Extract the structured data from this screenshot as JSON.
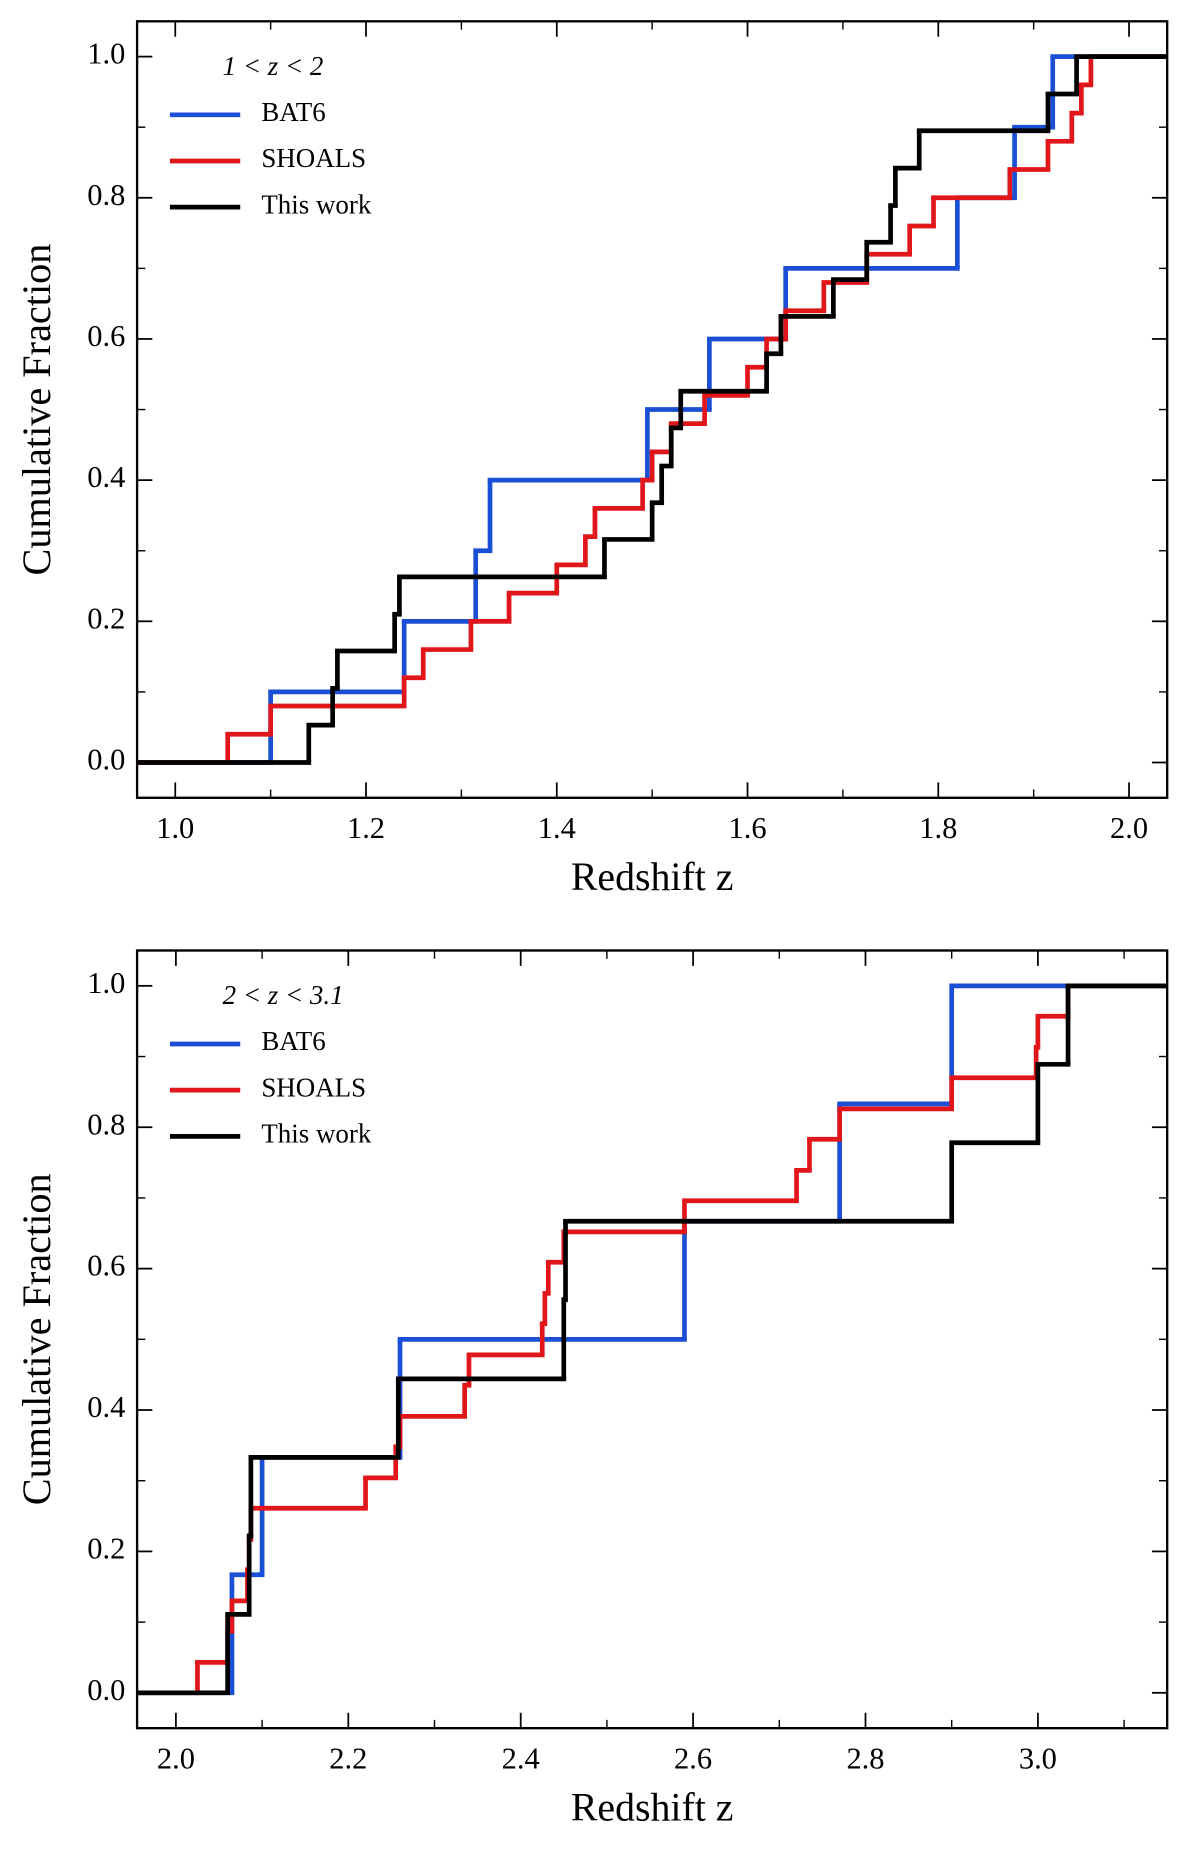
{
  "chart_data": [
    {
      "type": "step",
      "legend_title": "1 < z < 2",
      "xlabel": "Redshift z",
      "ylabel": "Cumulative Fraction",
      "legend": "upper left",
      "xlim": [
        0.96,
        2.04
      ],
      "ylim": [
        -0.05,
        1.05
      ],
      "xticks": [
        {
          "value": 1.0,
          "label": "1.0"
        },
        {
          "value": 1.2,
          "label": "1.2"
        },
        {
          "value": 1.4,
          "label": "1.4"
        },
        {
          "value": 1.6,
          "label": "1.6"
        },
        {
          "value": 1.8,
          "label": "1.8"
        },
        {
          "value": 2.0,
          "label": "2.0"
        }
      ],
      "yticks": [
        {
          "value": 0.0,
          "label": "0.0"
        },
        {
          "value": 0.2,
          "label": "0.2"
        },
        {
          "value": 0.4,
          "label": "0.4"
        },
        {
          "value": 0.6,
          "label": "0.6"
        },
        {
          "value": 0.8,
          "label": "0.8"
        },
        {
          "value": 1.0,
          "label": "1.0"
        }
      ],
      "xminor": [
        1.1,
        1.3,
        1.5,
        1.7,
        1.9
      ],
      "yminor": [
        0.1,
        0.3,
        0.5,
        0.7,
        0.9
      ],
      "series": [
        {
          "name": "BAT6",
          "color": "#1a4fd6",
          "x": [
            0.96,
            1.1,
            1.24,
            1.315,
            1.33,
            1.495,
            1.56,
            1.64,
            1.82,
            1.88,
            1.92
          ],
          "values": [
            0,
            0.1,
            0.2,
            0.3,
            0.4,
            0.5,
            0.6,
            0.7,
            0.8,
            0.9,
            1.0
          ]
        },
        {
          "name": "SHOALS",
          "color": "#e0161b",
          "x": [
            0.96,
            1.055,
            1.1,
            1.24,
            1.26,
            1.31,
            1.35,
            1.4,
            1.43,
            1.44,
            1.49,
            1.5,
            1.52,
            1.555,
            1.6,
            1.62,
            1.64,
            1.68,
            1.725,
            1.77,
            1.795,
            1.875,
            1.915,
            1.94,
            1.95,
            1.96
          ],
          "values": [
            0,
            0.04,
            0.08,
            0.12,
            0.16,
            0.2,
            0.24,
            0.28,
            0.32,
            0.36,
            0.4,
            0.44,
            0.48,
            0.52,
            0.56,
            0.6,
            0.64,
            0.68,
            0.72,
            0.76,
            0.8,
            0.84,
            0.88,
            0.92,
            0.96,
            1.0
          ]
        },
        {
          "name": "This work",
          "color": "#000000",
          "x": [
            0.96,
            1.14,
            1.165,
            1.17,
            1.23,
            1.235,
            1.45,
            1.5,
            1.51,
            1.52,
            1.53,
            1.62,
            1.635,
            1.69,
            1.725,
            1.75,
            1.755,
            1.78,
            1.915,
            1.945
          ],
          "values": [
            0,
            0.053,
            0.105,
            0.158,
            0.21,
            0.263,
            0.316,
            0.368,
            0.42,
            0.474,
            0.526,
            0.579,
            0.632,
            0.684,
            0.737,
            0.789,
            0.842,
            0.895,
            0.947,
            1.0
          ]
        }
      ]
    },
    {
      "type": "step",
      "legend_title": "2 < z < 3.1",
      "xlabel": "Redshift z",
      "ylabel": "Cumulative Fraction",
      "legend": "upper left",
      "xlim": [
        1.955,
        3.15
      ],
      "ylim": [
        -0.05,
        1.05
      ],
      "xticks": [
        {
          "value": 2.0,
          "label": "2.0"
        },
        {
          "value": 2.2,
          "label": "2.2"
        },
        {
          "value": 2.4,
          "label": "2.4"
        },
        {
          "value": 2.6,
          "label": "2.6"
        },
        {
          "value": 2.8,
          "label": "2.8"
        },
        {
          "value": 3.0,
          "label": "3.0"
        }
      ],
      "yticks": [
        {
          "value": 0.0,
          "label": "0.0"
        },
        {
          "value": 0.2,
          "label": "0.2"
        },
        {
          "value": 0.4,
          "label": "0.4"
        },
        {
          "value": 0.6,
          "label": "0.6"
        },
        {
          "value": 0.8,
          "label": "0.8"
        },
        {
          "value": 1.0,
          "label": "1.0"
        }
      ],
      "xminor": [
        2.1,
        2.3,
        2.5,
        2.7,
        2.9,
        3.1
      ],
      "yminor": [
        0.1,
        0.3,
        0.5,
        0.7,
        0.9
      ],
      "series": [
        {
          "name": "BAT6",
          "color": "#1a4fd6",
          "x": [
            1.955,
            2.065,
            2.1,
            2.26,
            2.59,
            2.77,
            2.9
          ],
          "values": [
            0,
            0.167,
            0.333,
            0.5,
            0.667,
            0.833,
            1.0
          ]
        },
        {
          "name": "SHOALS",
          "color": "#e0161b",
          "x": [
            1.955,
            2.025,
            2.06,
            2.065,
            2.083,
            2.085,
            2.087,
            2.22,
            2.255,
            2.26,
            2.335,
            2.34,
            2.425,
            2.428,
            2.432,
            2.45,
            2.59,
            2.72,
            2.735,
            2.77,
            2.9,
            2.998,
            3.0,
            3.035
          ],
          "values": [
            0,
            0.043,
            0.087,
            0.13,
            0.174,
            0.217,
            0.261,
            0.304,
            0.348,
            0.391,
            0.435,
            0.478,
            0.522,
            0.565,
            0.609,
            0.652,
            0.696,
            0.739,
            0.783,
            0.826,
            0.87,
            0.913,
            0.957,
            1.0
          ]
        },
        {
          "name": "This work",
          "color": "#000000",
          "x": [
            1.955,
            2.06,
            2.085,
            2.087,
            2.258,
            2.45,
            2.452,
            2.9,
            3.0,
            3.035
          ],
          "values": [
            0,
            0.111,
            0.222,
            0.333,
            0.444,
            0.556,
            0.667,
            0.778,
            0.889,
            1.0
          ]
        }
      ]
    }
  ]
}
